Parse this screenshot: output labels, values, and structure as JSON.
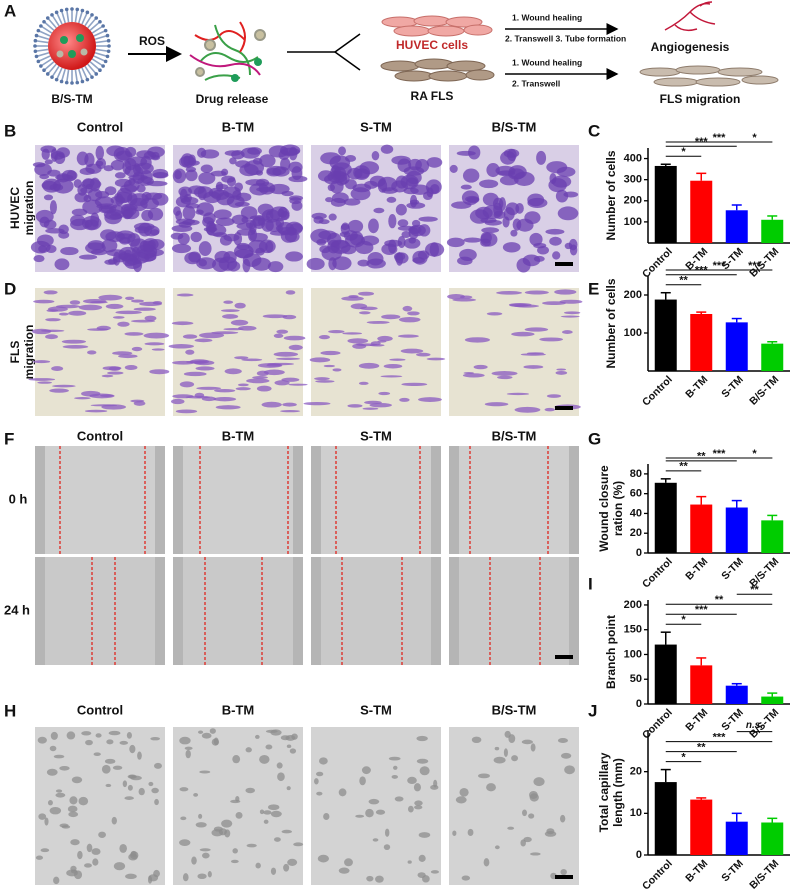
{
  "panel_labels": [
    "A",
    "B",
    "C",
    "D",
    "E",
    "F",
    "G",
    "H",
    "I",
    "J"
  ],
  "schematic": {
    "particle": "B/S-TM",
    "stimulus": "ROS",
    "step": "Drug release",
    "cell_1": "HUVEC cells",
    "cell_2": "RA FLS",
    "assay_1": [
      "1. Wound healing",
      "2. Transwell 3. Tube formation"
    ],
    "assay_2": [
      "1. Wound healing",
      "2. Transwell"
    ],
    "outcome_1": "Angiogenesis",
    "outcome_2": "FLS migration"
  },
  "image_panels": {
    "groups": [
      "Control",
      "B-TM",
      "S-TM",
      "B/S-TM"
    ],
    "huvec_row": [
      "HUVEC",
      "migration"
    ],
    "fls_row": [
      "FLS",
      "migration"
    ],
    "times": [
      "0 h",
      "24 h"
    ]
  },
  "chart_data": [
    {
      "type": "bar",
      "categories": [
        "Control",
        "B-TM",
        "S-TM",
        "B/S-TM"
      ],
      "values": [
        365,
        295,
        155,
        110
      ],
      "errors": [
        8,
        35,
        25,
        18
      ],
      "colors": [
        "#000000",
        "#ff0000",
        "#0000ff",
        "#00cc00"
      ],
      "ylabel": [
        "Number of cells"
      ],
      "ylim": [
        0,
        450
      ],
      "yticks": [
        100,
        200,
        300,
        400
      ],
      "significance": [
        {
          "pair": [
            "Control",
            "B-TM"
          ],
          "label": "*"
        },
        {
          "pair": [
            "Control",
            "S-TM"
          ],
          "label": "***"
        },
        {
          "pair": [
            "Control",
            "B/S-TM"
          ],
          "label": "***"
        },
        {
          "pair": [
            "S-TM",
            "B/S-TM"
          ],
          "label": "*"
        }
      ]
    },
    {
      "type": "bar",
      "categories": [
        "Control",
        "B-TM",
        "S-TM",
        "B/S-TM"
      ],
      "values": [
        188,
        150,
        128,
        72
      ],
      "errors": [
        18,
        5,
        10,
        5
      ],
      "colors": [
        "#000000",
        "#ff0000",
        "#0000ff",
        "#00cc00"
      ],
      "ylabel": [
        "Number of cells"
      ],
      "ylim": [
        0,
        250
      ],
      "yticks": [
        100,
        200
      ],
      "significance": [
        {
          "pair": [
            "Control",
            "B-TM"
          ],
          "label": "**"
        },
        {
          "pair": [
            "Control",
            "S-TM"
          ],
          "label": "***"
        },
        {
          "pair": [
            "Control",
            "B/S-TM"
          ],
          "label": "***"
        },
        {
          "pair": [
            "S-TM",
            "B/S-TM"
          ],
          "label": "***"
        }
      ]
    },
    {
      "type": "bar",
      "categories": [
        "Control",
        "B-TM",
        "S-TM",
        "B/S-TM"
      ],
      "values": [
        71,
        49,
        46,
        33
      ],
      "errors": [
        4,
        8,
        7,
        5
      ],
      "colors": [
        "#000000",
        "#ff0000",
        "#0000ff",
        "#00cc00"
      ],
      "ylabel": [
        "Wound closure",
        "ration (%)"
      ],
      "ylim": [
        0,
        90
      ],
      "yticks": [
        0,
        20,
        40,
        60,
        80
      ],
      "significance": [
        {
          "pair": [
            "Control",
            "B-TM"
          ],
          "label": "**"
        },
        {
          "pair": [
            "Control",
            "S-TM"
          ],
          "label": "**"
        },
        {
          "pair": [
            "Control",
            "B/S-TM"
          ],
          "label": "***"
        },
        {
          "pair": [
            "S-TM",
            "B/S-TM"
          ],
          "label": "*"
        }
      ]
    },
    {
      "type": "bar",
      "categories": [
        "Control",
        "B-TM",
        "S-TM",
        "B/S-TM"
      ],
      "values": [
        120,
        78,
        37,
        15
      ],
      "errors": [
        25,
        15,
        4,
        7
      ],
      "colors": [
        "#000000",
        "#ff0000",
        "#0000ff",
        "#00cc00"
      ],
      "ylabel": [
        "Branch point"
      ],
      "ylim": [
        0,
        210
      ],
      "yticks": [
        0,
        50,
        100,
        150,
        200
      ],
      "significance": [
        {
          "pair": [
            "Control",
            "B-TM"
          ],
          "label": "*"
        },
        {
          "pair": [
            "Control",
            "S-TM"
          ],
          "label": "***"
        },
        {
          "pair": [
            "Control",
            "B/S-TM"
          ],
          "label": "**"
        },
        {
          "pair": [
            "S-TM",
            "B/S-TM"
          ],
          "label": "**"
        }
      ]
    },
    {
      "type": "bar",
      "categories": [
        "Control",
        "B-TM",
        "S-TM",
        "B/S-TM"
      ],
      "values": [
        17.5,
        13.3,
        8,
        7.8
      ],
      "errors": [
        3,
        0.4,
        2,
        1
      ],
      "colors": [
        "#000000",
        "#ff0000",
        "#0000ff",
        "#00cc00"
      ],
      "ylabel": [
        "Total capillary",
        "length (mm)"
      ],
      "ylim": [
        0,
        30
      ],
      "yticks": [
        0,
        10,
        20
      ],
      "significance": [
        {
          "pair": [
            "Control",
            "B-TM"
          ],
          "label": "*"
        },
        {
          "pair": [
            "Control",
            "S-TM"
          ],
          "label": "**"
        },
        {
          "pair": [
            "Control",
            "B/S-TM"
          ],
          "label": "***"
        },
        {
          "pair": [
            "S-TM",
            "B/S-TM"
          ],
          "label": "n.s."
        }
      ]
    }
  ]
}
